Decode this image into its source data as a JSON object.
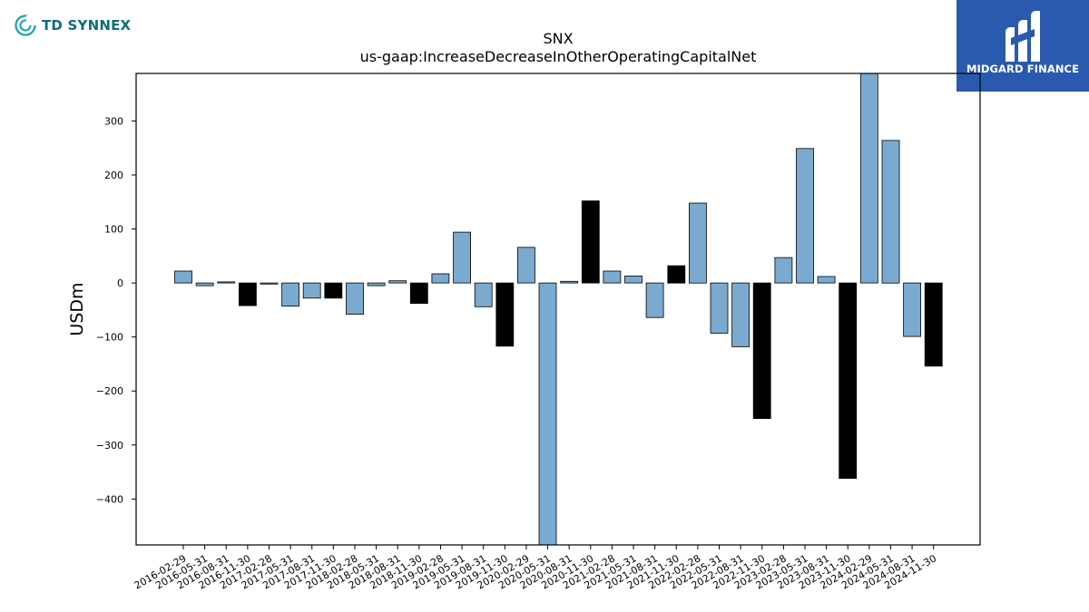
{
  "branding": {
    "left_logo_text": "TD SYNNEX",
    "right_logo_text": "MIDGARD FINANCE",
    "right_logo_bg": "#2a5aad",
    "left_logo_color": "#0b6e78"
  },
  "chart_data": {
    "type": "bar",
    "title": "SNX",
    "subtitle": "us-gaap:IncreaseDecreaseInOtherOperatingCapitalNet",
    "xlabel": "",
    "ylabel": "USDm",
    "ylim": [
      -485,
      388
    ],
    "yticks": [
      -400,
      -300,
      -200,
      -100,
      0,
      100,
      200,
      300
    ],
    "grid": false,
    "colors": {
      "quarter": "#7aaad0",
      "q4": "#000000",
      "edge": "#000000"
    },
    "categories": [
      "2016-02-29",
      "2016-05-31",
      "2016-08-31",
      "2016-11-30",
      "2017-02-28",
      "2017-05-31",
      "2017-08-31",
      "2017-11-30",
      "2018-02-28",
      "2018-05-31",
      "2018-08-31",
      "2018-11-30",
      "2019-02-28",
      "2019-05-31",
      "2019-08-31",
      "2019-11-30",
      "2020-02-29",
      "2020-05-31",
      "2020-08-31",
      "2020-11-30",
      "2021-02-28",
      "2021-05-31",
      "2021-08-31",
      "2021-11-30",
      "2022-02-28",
      "2022-05-31",
      "2022-08-31",
      "2022-11-30",
      "2023-02-28",
      "2023-05-31",
      "2023-08-31",
      "2023-11-30",
      "2024-02-29",
      "2024-05-31",
      "2024-08-31",
      "2024-11-30"
    ],
    "values": [
      22,
      -5,
      2,
      -42,
      -2,
      -43,
      -28,
      -28,
      -58,
      -5,
      4,
      -38,
      17,
      94,
      -44,
      -117,
      66,
      -485,
      3,
      152,
      22,
      13,
      -64,
      32,
      148,
      -93,
      -118,
      -251,
      47,
      249,
      12,
      -362,
      388,
      264,
      -99,
      -154
    ],
    "fiscal_q4": [
      false,
      false,
      false,
      true,
      false,
      false,
      false,
      true,
      false,
      false,
      false,
      true,
      false,
      false,
      false,
      true,
      false,
      false,
      false,
      true,
      false,
      false,
      false,
      true,
      false,
      false,
      false,
      true,
      false,
      false,
      false,
      true,
      false,
      false,
      false,
      true
    ]
  }
}
